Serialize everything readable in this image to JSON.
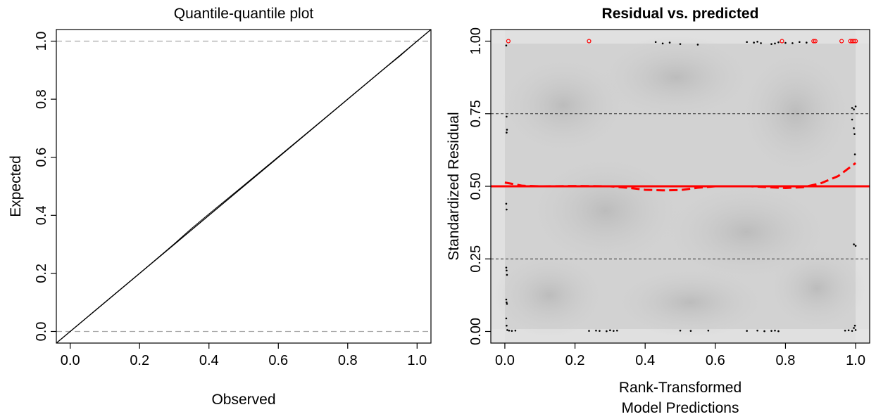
{
  "chart_data": [
    {
      "type": "line",
      "title": "Quantile-quantile plot",
      "xlabel": "Observed",
      "ylabel": "Expected",
      "xlim": [
        -0.04,
        1.04
      ],
      "ylim": [
        -0.04,
        1.04
      ],
      "x_ticks": [
        "0.0",
        "0.2",
        "0.4",
        "0.6",
        "0.8",
        "1.0"
      ],
      "y_ticks": [
        "0.0",
        "0.2",
        "0.4",
        "0.6",
        "0.8",
        "1.0"
      ],
      "reference_lines": {
        "horizontal_dashed": [
          0,
          1
        ],
        "diagonal": "y = x"
      },
      "series": [
        {
          "x": [
            0.0,
            0.1,
            0.2,
            0.3,
            0.35,
            0.4,
            0.5,
            0.6,
            0.7,
            0.8,
            0.9,
            0.95,
            1.0
          ],
          "y": [
            0.0,
            0.1,
            0.2,
            0.302,
            0.355,
            0.405,
            0.503,
            0.602,
            0.701,
            0.8,
            0.9,
            0.948,
            1.0
          ]
        }
      ],
      "grid": false
    },
    {
      "type": "scatter",
      "title": "Residual vs. predicted",
      "xlabel": [
        "Rank-Transformed",
        "Model Predictions"
      ],
      "ylabel": "Standardized Residual",
      "xlim": [
        -0.04,
        1.04
      ],
      "ylim": [
        -0.04,
        1.04
      ],
      "x_ticks": [
        "0.0",
        "0.2",
        "0.4",
        "0.6",
        "0.8",
        "1.0"
      ],
      "y_ticks": [
        "0.00",
        "0.25",
        "0.50",
        "0.75",
        "1.00"
      ],
      "reference_lines": {
        "horizontal_dashed": [
          0.25,
          0.75
        ],
        "horizontal_solid_red": 0.5
      },
      "background": "grey density shading",
      "colors": {
        "points": "#000000",
        "outliers": "#ff0000",
        "smooth": "#ff0000",
        "shade": "#b0b0b0"
      },
      "points": [
        [
          0.004,
          0.985
        ],
        [
          0.005,
          0.74
        ],
        [
          0.006,
          0.695
        ],
        [
          0.005,
          0.685
        ],
        [
          0.004,
          0.44
        ],
        [
          0.005,
          0.42
        ],
        [
          0.004,
          0.22
        ],
        [
          0.005,
          0.21
        ],
        [
          0.006,
          0.195
        ],
        [
          0.004,
          0.11
        ],
        [
          0.005,
          0.1
        ],
        [
          0.006,
          0.095
        ],
        [
          0.004,
          0.045
        ],
        [
          0.005,
          0.02
        ],
        [
          0.007,
          0.005
        ],
        [
          0.012,
          0.003
        ],
        [
          0.02,
          0.002
        ],
        [
          0.03,
          0.003
        ],
        [
          0.24,
          0.002
        ],
        [
          0.26,
          0.003
        ],
        [
          0.27,
          0.002
        ],
        [
          0.29,
          0.001
        ],
        [
          0.3,
          0.004
        ],
        [
          0.31,
          0.002
        ],
        [
          0.32,
          0.003
        ],
        [
          0.43,
          0.997
        ],
        [
          0.45,
          0.992
        ],
        [
          0.47,
          0.995
        ],
        [
          0.5,
          0.99
        ],
        [
          0.55,
          0.988
        ],
        [
          0.5,
          0.003
        ],
        [
          0.53,
          0.002
        ],
        [
          0.58,
          0.003
        ],
        [
          0.69,
          0.997
        ],
        [
          0.71,
          0.995
        ],
        [
          0.72,
          0.998
        ],
        [
          0.73,
          0.993
        ],
        [
          0.76,
          0.99
        ],
        [
          0.77,
          0.992
        ],
        [
          0.78,
          0.996
        ],
        [
          0.8,
          0.994
        ],
        [
          0.82,
          0.993
        ],
        [
          0.84,
          0.997
        ],
        [
          0.86,
          0.995
        ],
        [
          0.69,
          0.002
        ],
        [
          0.72,
          0.003
        ],
        [
          0.74,
          0.001
        ],
        [
          0.76,
          0.002
        ],
        [
          0.77,
          0.003
        ],
        [
          0.78,
          0.001
        ],
        [
          0.97,
          0.003
        ],
        [
          0.98,
          0.004
        ],
        [
          0.99,
          0.002
        ],
        [
          0.995,
          0.012
        ],
        [
          0.998,
          0.02
        ],
        [
          1.0,
          0.005
        ],
        [
          0.99,
          0.77
        ],
        [
          0.995,
          0.765
        ],
        [
          1.0,
          0.775
        ],
        [
          0.99,
          0.73
        ],
        [
          0.995,
          0.7
        ],
        [
          0.997,
          0.68
        ],
        [
          0.998,
          0.61
        ],
        [
          1.0,
          0.295
        ],
        [
          0.995,
          0.3
        ]
      ],
      "outliers": [
        [
          0.01,
          1.0
        ],
        [
          0.24,
          1.0
        ],
        [
          0.79,
          1.0
        ],
        [
          0.88,
          1.0
        ],
        [
          0.885,
          1.0
        ],
        [
          0.96,
          1.0
        ],
        [
          0.985,
          1.0
        ],
        [
          0.99,
          1.0
        ],
        [
          0.995,
          1.0
        ],
        [
          1.0,
          1.0
        ]
      ],
      "smooth_dashed": {
        "x": [
          0.0,
          0.05,
          0.1,
          0.2,
          0.3,
          0.35,
          0.4,
          0.45,
          0.5,
          0.55,
          0.6,
          0.7,
          0.8,
          0.85,
          0.9,
          0.95,
          1.0
        ],
        "y": [
          0.513,
          0.502,
          0.5,
          0.501,
          0.5,
          0.495,
          0.488,
          0.486,
          0.487,
          0.495,
          0.5,
          0.5,
          0.494,
          0.497,
          0.51,
          0.535,
          0.58
        ]
      }
    }
  ]
}
